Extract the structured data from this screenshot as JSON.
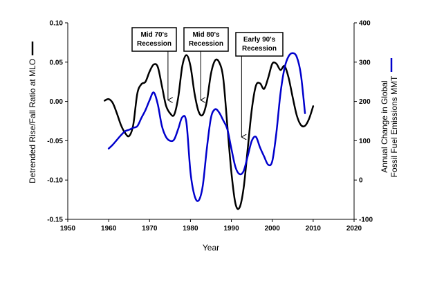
{
  "chart_data": {
    "type": "line",
    "title": "",
    "xlabel": "Year",
    "ylabel_left": "Detrended Rise/Fall Ratio at MLO",
    "ylabel_right": [
      "Annual Change in Global",
      "Fossil Fuel Emissions MMT"
    ],
    "xlim": [
      1950,
      2020
    ],
    "ylim_left": [
      -0.15,
      0.1
    ],
    "ylim_right": [
      -100,
      400
    ],
    "x_ticks": [
      "1950",
      "1960",
      "1970",
      "1980",
      "1990",
      "2000",
      "2010",
      "2020"
    ],
    "y_left_ticks": [
      "-0.15",
      "-0.10",
      "-0.05",
      "0.00",
      "0.05",
      "0.10"
    ],
    "y_right_ticks": [
      "-100",
      "0",
      "100",
      "200",
      "300",
      "400"
    ],
    "grid": false,
    "series": [
      {
        "axis": "left",
        "color": "#000000",
        "points": [
          [
            1959.0,
            0.001
          ],
          [
            1960.0,
            0.003
          ],
          [
            1961.0,
            -0.002
          ],
          [
            1962.0,
            -0.015
          ],
          [
            1963.0,
            -0.03
          ],
          [
            1964.0,
            -0.04
          ],
          [
            1965.0,
            -0.044
          ],
          [
            1966.0,
            -0.03
          ],
          [
            1967.0,
            0.01
          ],
          [
            1968.0,
            0.022
          ],
          [
            1969.0,
            0.025
          ],
          [
            1970.0,
            0.038
          ],
          [
            1971.0,
            0.047
          ],
          [
            1972.0,
            0.044
          ],
          [
            1973.0,
            0.02
          ],
          [
            1974.0,
            -0.005
          ],
          [
            1975.0,
            -0.015
          ],
          [
            1976.0,
            -0.017
          ],
          [
            1977.0,
            0.005
          ],
          [
            1978.0,
            0.045
          ],
          [
            1979.0,
            0.059
          ],
          [
            1980.0,
            0.045
          ],
          [
            1981.0,
            0.01
          ],
          [
            1982.0,
            -0.013
          ],
          [
            1983.0,
            -0.017
          ],
          [
            1984.0,
            0.0
          ],
          [
            1985.0,
            0.035
          ],
          [
            1986.0,
            0.052
          ],
          [
            1987.0,
            0.05
          ],
          [
            1988.0,
            0.03
          ],
          [
            1989.0,
            -0.03
          ],
          [
            1990.0,
            -0.09
          ],
          [
            1991.0,
            -0.13
          ],
          [
            1992.0,
            -0.135
          ],
          [
            1993.0,
            -0.11
          ],
          [
            1994.0,
            -0.06
          ],
          [
            1995.0,
            -0.01
          ],
          [
            1996.0,
            0.02
          ],
          [
            1997.0,
            0.023
          ],
          [
            1998.0,
            0.016
          ],
          [
            1999.0,
            0.03
          ],
          [
            2000.0,
            0.048
          ],
          [
            2001.0,
            0.048
          ],
          [
            2002.0,
            0.04
          ],
          [
            2003.0,
            0.045
          ],
          [
            2004.0,
            0.03
          ],
          [
            2005.0,
            0.005
          ],
          [
            2006.0,
            -0.018
          ],
          [
            2007.0,
            -0.03
          ],
          [
            2008.0,
            -0.031
          ],
          [
            2009.0,
            -0.022
          ],
          [
            2010.0,
            -0.006
          ]
        ]
      },
      {
        "axis": "right",
        "color": "#0000cc",
        "points": [
          [
            1960.0,
            80
          ],
          [
            1961.0,
            90
          ],
          [
            1962.0,
            102
          ],
          [
            1963.0,
            114
          ],
          [
            1964.0,
            124
          ],
          [
            1965.0,
            128
          ],
          [
            1966.0,
            133
          ],
          [
            1967.0,
            137
          ],
          [
            1968.0,
            158
          ],
          [
            1969.0,
            178
          ],
          [
            1970.0,
            203
          ],
          [
            1971.0,
            223
          ],
          [
            1972.0,
            193
          ],
          [
            1973.0,
            138
          ],
          [
            1974.0,
            110
          ],
          [
            1975.0,
            100
          ],
          [
            1976.0,
            103
          ],
          [
            1977.0,
            130
          ],
          [
            1978.0,
            160
          ],
          [
            1979.0,
            147
          ],
          [
            1980.0,
            20
          ],
          [
            1981.0,
            -40
          ],
          [
            1982.0,
            -52
          ],
          [
            1983.0,
            -15
          ],
          [
            1984.0,
            80
          ],
          [
            1985.0,
            158
          ],
          [
            1986.0,
            180
          ],
          [
            1987.0,
            172
          ],
          [
            1988.0,
            152
          ],
          [
            1989.0,
            130
          ],
          [
            1990.0,
            80
          ],
          [
            1991.0,
            33
          ],
          [
            1992.0,
            15
          ],
          [
            1993.0,
            23
          ],
          [
            1994.0,
            61
          ],
          [
            1995.0,
            100
          ],
          [
            1996.0,
            110
          ],
          [
            1997.0,
            83
          ],
          [
            1998.0,
            60
          ],
          [
            1999.0,
            39
          ],
          [
            2000.0,
            48
          ],
          [
            2001.0,
            120
          ],
          [
            2002.0,
            220
          ],
          [
            2003.0,
            285
          ],
          [
            2004.0,
            315
          ],
          [
            2005.0,
            323
          ],
          [
            2006.0,
            313
          ],
          [
            2007.0,
            268
          ],
          [
            2008.0,
            170
          ]
        ]
      }
    ],
    "annotations": [
      {
        "lines": [
          "Mid 70's",
          "Recession"
        ],
        "arrow_to": [
          1974.5,
          0.0
        ]
      },
      {
        "lines": [
          "Mid 80's",
          "Recession"
        ],
        "arrow_to": [
          1982.5,
          0.0
        ]
      },
      {
        "lines": [
          "Early 90's",
          "Recession"
        ],
        "arrow_to": [
          1992.5,
          -0.047
        ]
      }
    ]
  }
}
